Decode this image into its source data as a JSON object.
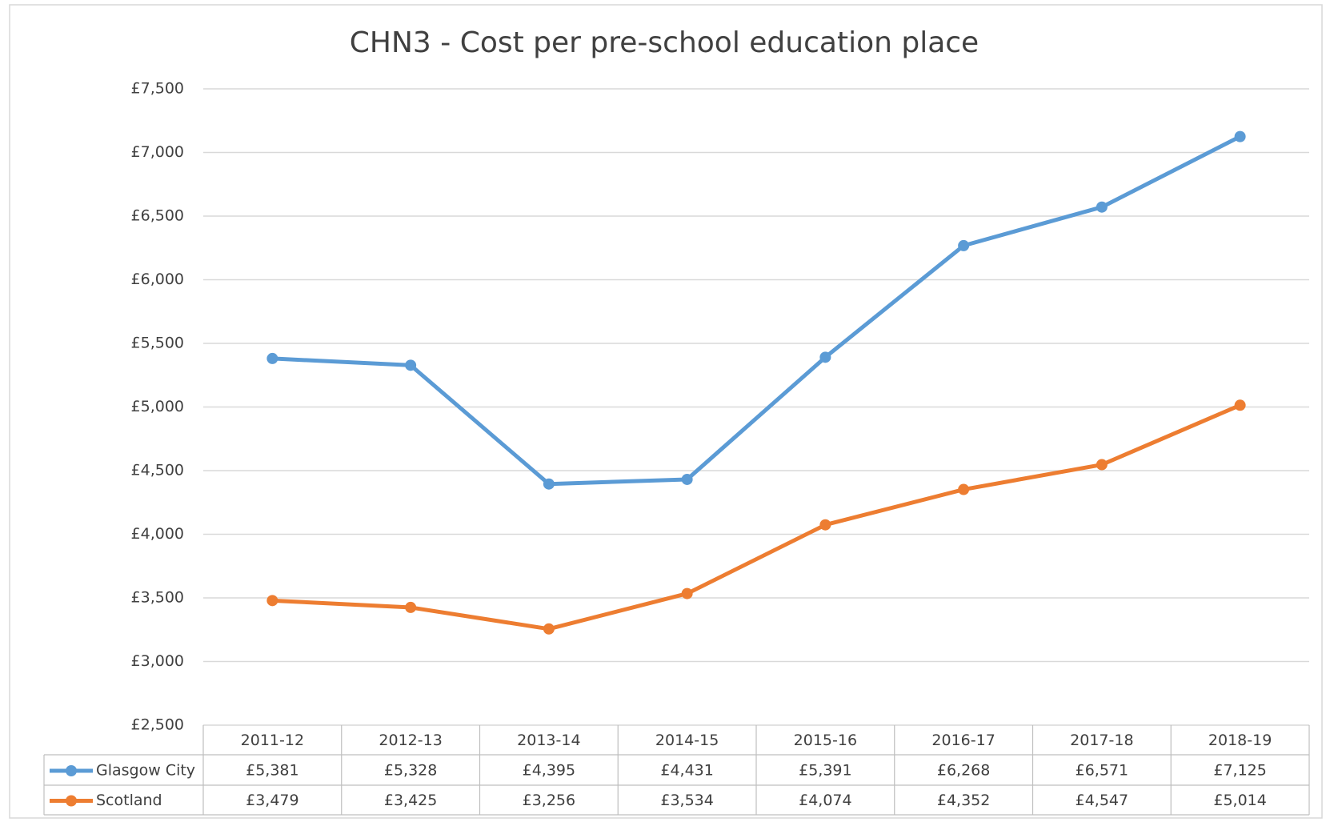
{
  "chart_data": {
    "type": "line",
    "title": "CHN3 - Cost per pre-school education place",
    "categories": [
      "2011-12",
      "2012-13",
      "2013-14",
      "2014-15",
      "2015-16",
      "2016-17",
      "2017-18",
      "2018-19"
    ],
    "series": [
      {
        "name": "Glasgow City",
        "color": "#5b9bd5",
        "values": [
          5381,
          5328,
          4395,
          4431,
          5391,
          6268,
          6571,
          7125
        ],
        "value_labels": [
          "£5,381",
          "£5,328",
          "£4,395",
          "£4,431",
          "£5,391",
          "£6,268",
          "£6,571",
          "£7,125"
        ]
      },
      {
        "name": "Scotland",
        "color": "#ed7d31",
        "values": [
          3479,
          3425,
          3256,
          3534,
          4074,
          4352,
          4547,
          5014
        ],
        "value_labels": [
          "£3,479",
          "£3,425",
          "£3,256",
          "£3,534",
          "£4,074",
          "£4,352",
          "£4,547",
          "£5,014"
        ]
      }
    ],
    "ylim": [
      2500,
      7500
    ],
    "yticks": [
      {
        "value": 2500,
        "label": "£2,500"
      },
      {
        "value": 3000,
        "label": "£3,000"
      },
      {
        "value": 3500,
        "label": "£3,500"
      },
      {
        "value": 4000,
        "label": "£4,000"
      },
      {
        "value": 4500,
        "label": "£4,500"
      },
      {
        "value": 5000,
        "label": "£5,000"
      },
      {
        "value": 5500,
        "label": "£5,500"
      },
      {
        "value": 6000,
        "label": "£6,000"
      },
      {
        "value": 6500,
        "label": "£6,500"
      },
      {
        "value": 7000,
        "label": "£7,000"
      },
      {
        "value": 7500,
        "label": "£7,500"
      }
    ],
    "grid": true
  }
}
